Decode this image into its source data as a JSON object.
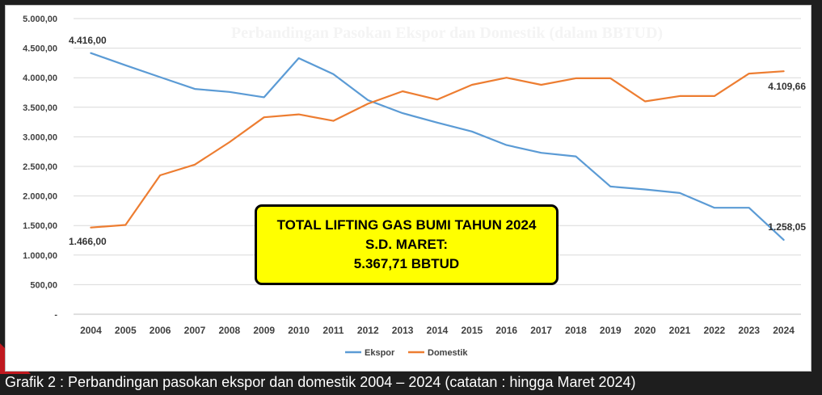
{
  "chart_data": {
    "type": "line",
    "title": "Perbandingan Pasokan Ekspor dan Domestik (dalam BBTUD)",
    "x": [
      "2004",
      "2005",
      "2006",
      "2007",
      "2008",
      "2009",
      "2010",
      "2011",
      "2012",
      "2013",
      "2014",
      "2015",
      "2016",
      "2017",
      "2018",
      "2019",
      "2020",
      "2021",
      "2022",
      "2023",
      "2024"
    ],
    "y_ticks": [
      "5.000,00",
      "4.500,00",
      "4.000,00",
      "3.500,00",
      "3.000,00",
      "2.500,00",
      "2.000,00",
      "1.500,00",
      "1.000,00",
      "500,00",
      "-"
    ],
    "ylim": [
      0,
      5000
    ],
    "grid": true,
    "legend_position": "bottom",
    "series": [
      {
        "name": "Ekspor",
        "color": "#5b9bd5",
        "values": [
          4416,
          4210,
          4010,
          3810,
          3760,
          3670,
          4330,
          4060,
          3620,
          3400,
          3240,
          3090,
          2860,
          2730,
          2670,
          2160,
          2110,
          2050,
          1800,
          1800,
          1258.05
        ]
      },
      {
        "name": "Domestik",
        "color": "#ed7d31",
        "values": [
          1466,
          1510,
          2350,
          2530,
          2910,
          3330,
          3380,
          3270,
          3560,
          3770,
          3630,
          3880,
          4000,
          3880,
          3990,
          3990,
          3600,
          3690,
          3690,
          4070,
          4109.66
        ]
      }
    ],
    "annotations": {
      "ekspor_start": "4.416,00",
      "ekspor_end": "1.258,05",
      "domestik_start": "1.466,00",
      "domestik_end": "4.109,66"
    }
  },
  "callout": {
    "line1": "TOTAL LIFTING GAS BUMI TAHUN 2024",
    "line2": "S.D. MARET:",
    "line3": "5.367,71 BBTUD",
    "background": "#ffff00"
  },
  "caption": "Grafik 2 : Perbandingan pasokan ekspor dan domestik 2004 – 2024 (catatan : hingga Maret 2024)"
}
